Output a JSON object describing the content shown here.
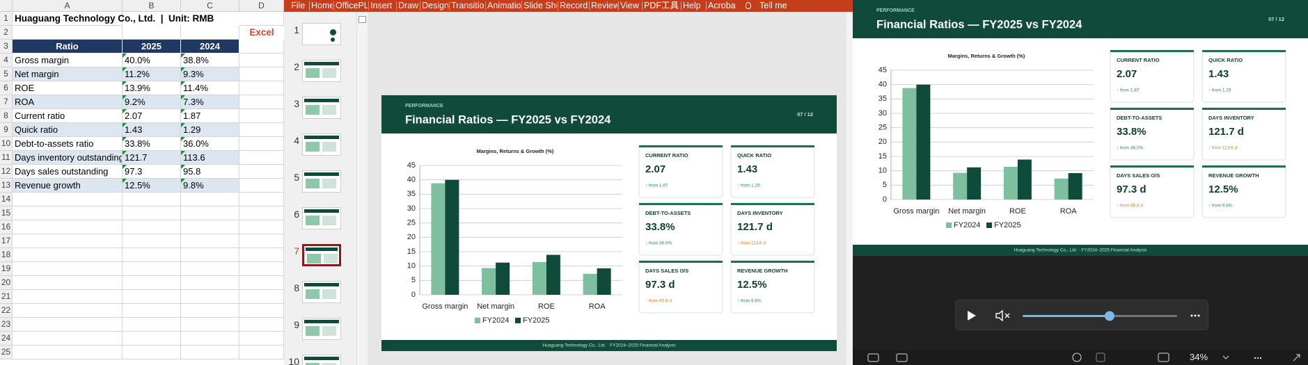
{
  "excel": {
    "columns": [
      "A",
      "B",
      "C",
      "D"
    ],
    "row_numbers": [
      1,
      2,
      3,
      4,
      5,
      6,
      7,
      8,
      9,
      10,
      11,
      12,
      13,
      14,
      15,
      16,
      17,
      18,
      19,
      20,
      21,
      22,
      23,
      24,
      25
    ],
    "title": "Huaguang Technology Co., Ltd.  |  Unit: RMB",
    "tag": "Excel",
    "header": [
      "Ratio",
      "2025",
      "2024"
    ],
    "rows": [
      [
        "Gross margin",
        "40.0%",
        "38.8%"
      ],
      [
        "Net margin",
        "11.2%",
        "9.3%"
      ],
      [
        "ROE",
        "13.9%",
        "11.4%"
      ],
      [
        "ROA",
        "9.2%",
        "7.3%"
      ],
      [
        "Current ratio",
        "2.07",
        "1.87"
      ],
      [
        "Quick ratio",
        "1.43",
        "1.29"
      ],
      [
        "Debt-to-assets ratio",
        "33.8%",
        "36.0%"
      ],
      [
        "Days inventory outstanding",
        "121.7",
        "113.6"
      ],
      [
        "Days sales outstanding",
        "97.3",
        "95.8"
      ],
      [
        "Revenue growth",
        "12.5%",
        "9.8%"
      ]
    ]
  },
  "powerpoint": {
    "tabs": [
      "File",
      "Home",
      "OfficePL",
      "Insert",
      "Draw",
      "Design",
      "Transitio",
      "Animatio",
      "Slide Sho",
      "Record",
      "Review",
      "View",
      "PDF工具",
      "Help",
      "Acrobat"
    ],
    "tell_me": "Tell me",
    "thumbnails": [
      1,
      2,
      3,
      4,
      5,
      6,
      7,
      8,
      9,
      10
    ],
    "selected": 7
  },
  "slide": {
    "kicker": "PERFORMANCE",
    "title": "Financial Ratios — FY2025 vs FY2024",
    "page": "07 / 12",
    "footer": "Huaguang Technology Co., Ltd.  ·  FY2024–2025 Financial Analysis",
    "cards": [
      {
        "label": "CURRENT RATIO",
        "value": "2.07",
        "delta": "↑ from 1.87",
        "color": "#2e8b57"
      },
      {
        "label": "QUICK RATIO",
        "value": "1.43",
        "delta": "↑ from 1.29",
        "color": "#2e8b57"
      },
      {
        "label": "DEBT-TO-ASSETS",
        "value": "33.8%",
        "delta": "↓ from 36.0%",
        "color": "#2e8b57"
      },
      {
        "label": "DAYS INVENTORY",
        "value": "121.7 d",
        "delta": "↑ from 113.6 d",
        "color": "#d4811f"
      },
      {
        "label": "DAYS SALES O/S",
        "value": "97.3 d",
        "delta": "↑ from 95.8 d",
        "color": "#d4811f"
      },
      {
        "label": "REVENUE GROWTH",
        "value": "12.5%",
        "delta": "↑ from 9.8%",
        "color": "#2e8b57"
      }
    ]
  },
  "chart_data": {
    "type": "bar",
    "title": "Margins, Returns & Growth (%)",
    "categories": [
      "Gross margin",
      "Net margin",
      "ROE",
      "ROA"
    ],
    "series": [
      {
        "name": "FY2024",
        "color": "#7dbf9e",
        "values": [
          38.8,
          9.3,
          11.4,
          7.3
        ]
      },
      {
        "name": "FY2025",
        "color": "#0f4a3a",
        "values": [
          40.0,
          11.2,
          13.9,
          9.2
        ]
      }
    ],
    "ylim": [
      0,
      45
    ],
    "yticks": [
      0,
      5,
      10,
      15,
      20,
      25,
      30,
      35,
      40,
      45
    ],
    "grid": true,
    "legend": "bottom"
  },
  "player": {
    "zoom": "34%"
  }
}
